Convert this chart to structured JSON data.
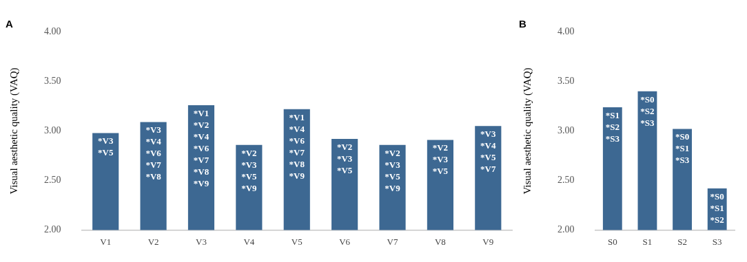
{
  "chart_data": [
    {
      "type": "bar",
      "title": "A",
      "ylabel": "Visual aesthetic quality (VAQ)",
      "categories": [
        "V1",
        "V2",
        "V3",
        "V4",
        "V5",
        "V6",
        "V7",
        "V8",
        "V9"
      ],
      "values": [
        2.98,
        3.09,
        3.26,
        2.86,
        3.22,
        2.92,
        2.86,
        2.91,
        3.05
      ],
      "color": "#3d6892",
      "ylim": [
        2,
        4
      ],
      "yticks": [
        {
          "value": 2,
          "label": "2.00"
        },
        {
          "value": 2.5,
          "label": "2.50"
        },
        {
          "value": 3,
          "label": "3.00"
        },
        {
          "value": 3.5,
          "label": "3.50"
        },
        {
          "value": 4,
          "label": "4.00"
        }
      ],
      "grid": false,
      "legend": false,
      "annotations": [
        {
          "text": "*V3\n*V5",
          "x": "V1",
          "y": 2.98
        },
        {
          "text": "*V3\n*V4\n*V6\n*V7\n*V8",
          "x": "V2",
          "y": 3.09
        },
        {
          "text": "*V1\n*V2\n*V4\n*V6\n*V7\n*V8\n*V9",
          "x": "V3",
          "y": 3.26
        },
        {
          "text": "*V2\n*V3\n*V5\n*V9",
          "x": "V4",
          "y": 2.86
        },
        {
          "text": "*V1\n*V4\n*V6\n*V7\n*V8\n*V9",
          "x": "V5",
          "y": 3.22
        },
        {
          "text": "*V2\n*V3\n*V5",
          "x": "V6",
          "y": 2.92
        },
        {
          "text": "*V2\n*V3\n*V5\n*V9",
          "x": "V7",
          "y": 2.86
        },
        {
          "text": "*V2\n*V3\n*V5",
          "x": "V8",
          "y": 2.91
        },
        {
          "text": "*V3\n*V4\n*V5\n*V7",
          "x": "V9",
          "y": 3.05
        }
      ]
    },
    {
      "type": "bar",
      "title": "B",
      "ylabel": "Visual aesthetic quality (VAQ)",
      "categories": [
        "S0",
        "S1",
        "S2",
        "S3"
      ],
      "values": [
        3.24,
        3.4,
        3.02,
        2.42
      ],
      "color": "#3d6892",
      "ylim": [
        2,
        4
      ],
      "yticks": [
        {
          "value": 2,
          "label": "2.00"
        },
        {
          "value": 2.5,
          "label": "2.50"
        },
        {
          "value": 3,
          "label": "3.00"
        },
        {
          "value": 3.5,
          "label": "3.50"
        },
        {
          "value": 4,
          "label": "4.00"
        }
      ],
      "grid": false,
      "legend": false,
      "annotations": [
        {
          "text": "*S1\n*S2\n*S3",
          "x": "S0",
          "y": 3.24
        },
        {
          "text": "*S0\n*S2\n*S3",
          "x": "S1",
          "y": 3.4
        },
        {
          "text": "*S0\n*S1\n*S3",
          "x": "S2",
          "y": 3.02
        },
        {
          "text": "*S0\n*S1\n*S2",
          "x": "S3",
          "y": 2.42
        }
      ]
    }
  ]
}
